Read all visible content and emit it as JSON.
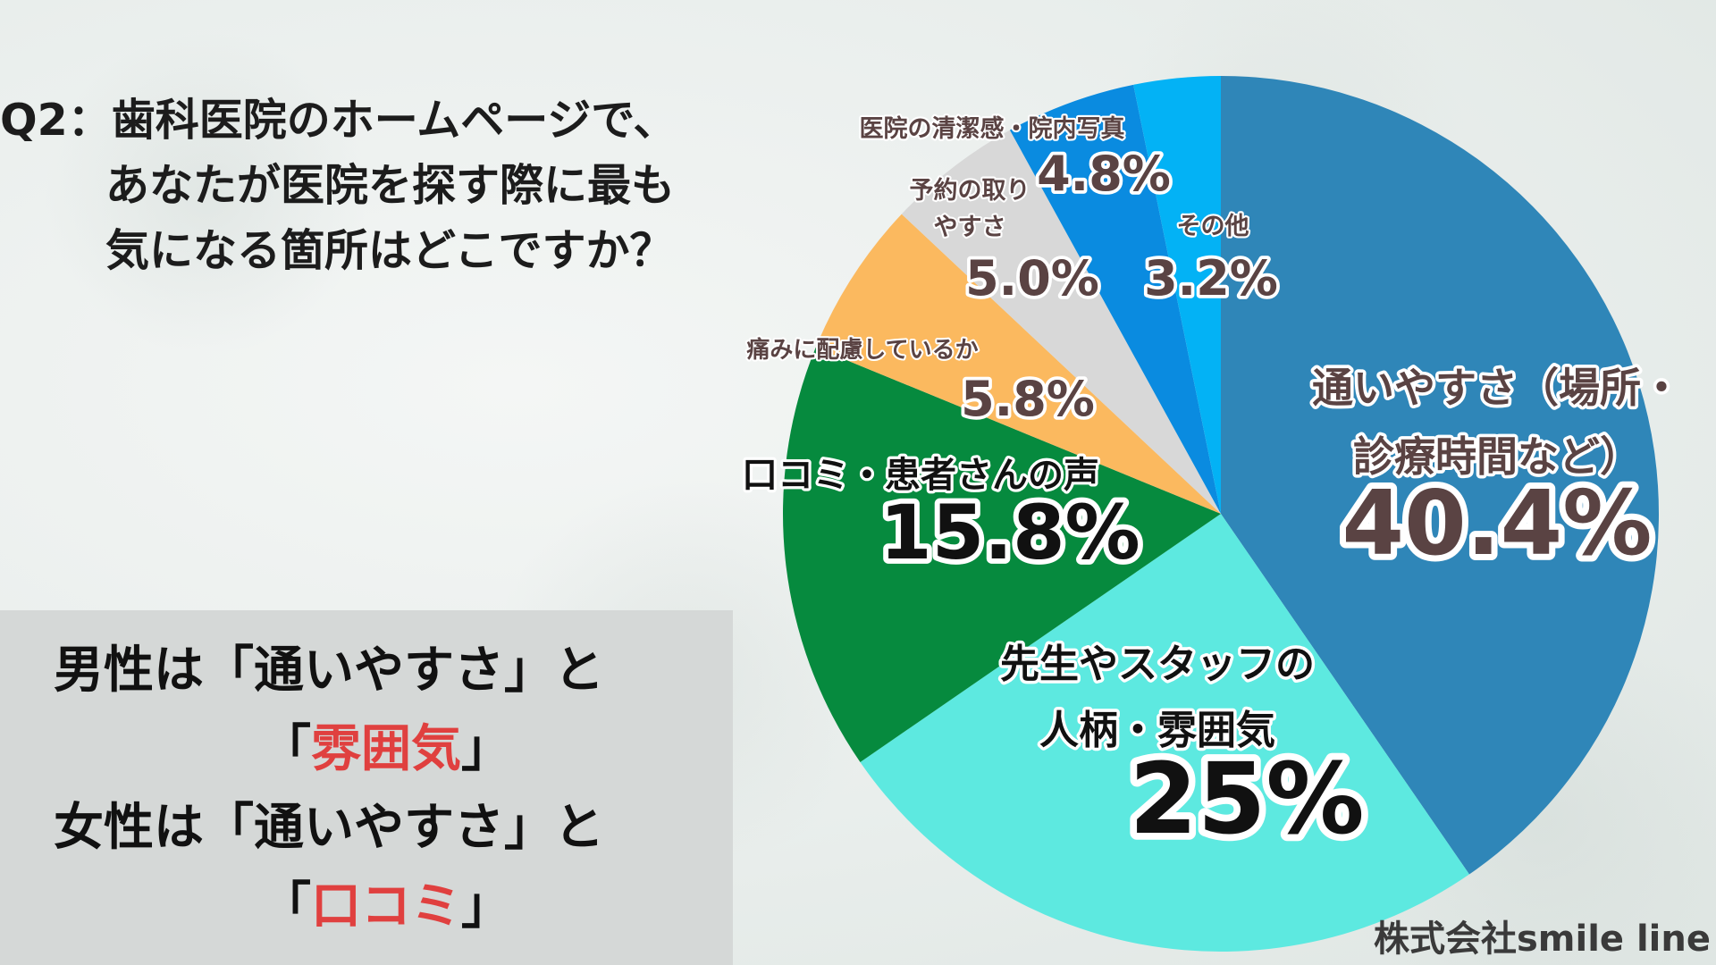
{
  "question": {
    "line1": "Q2：歯科医院のホームページで、",
    "line2": "あなたが医院を探す際に最も",
    "line3": "気になる箇所はどこですか？"
  },
  "summary": {
    "male_prefix": "男性は「通いやすさ」と",
    "male_open": "「",
    "male_highlight": "雰囲気",
    "male_close": "」",
    "female_prefix": "女性は「通いやすさ」と",
    "female_open": "「",
    "female_highlight": "口コミ",
    "female_close": "」",
    "highlight_color": "#e0403f"
  },
  "credit": "株式会社smile line",
  "chart_data": {
    "type": "pie",
    "start_angle": "12 o'clock",
    "direction": "clockwise",
    "slices": [
      {
        "label_lines": [
          "通いやすさ（場所・",
          "診療時間など）"
        ],
        "value": 40.4,
        "value_text": "40.4%",
        "color": "#2f86b8"
      },
      {
        "label_lines": [
          "先生やスタッフの",
          "人柄・雰囲気"
        ],
        "value": 25,
        "value_text": "25%",
        "color": "#5de9e0"
      },
      {
        "label_lines": [
          "口コミ・患者さんの声"
        ],
        "value": 15.8,
        "value_text": "15.8%",
        "color": "#068a3e"
      },
      {
        "label_lines": [
          "痛みに配慮しているか"
        ],
        "value": 5.8,
        "value_text": "5.8%",
        "color": "#fbb95f"
      },
      {
        "label_lines": [
          "予約の取り",
          "やすさ"
        ],
        "value": 5.0,
        "value_text": "5.0%",
        "color": "#d8d8d8"
      },
      {
        "label_lines": [
          "医院の清潔感・院内写真"
        ],
        "value": 4.8,
        "value_text": "4.8%",
        "color": "#0a8be0"
      },
      {
        "label_lines": [
          "その他"
        ],
        "value": 3.2,
        "value_text": "3.2%",
        "color": "#03b2f5"
      }
    ]
  }
}
